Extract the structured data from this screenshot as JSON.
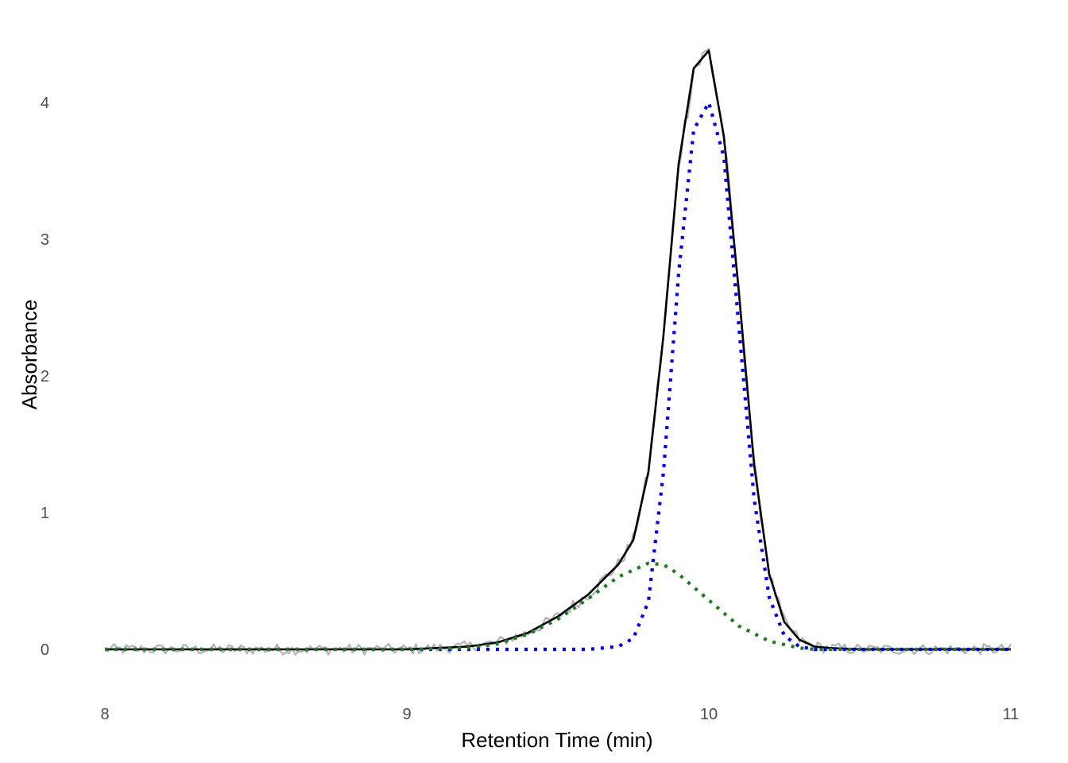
{
  "chart_data": {
    "type": "line",
    "title": "",
    "xlabel": "Retention Time (min)",
    "ylabel": "Absorbance",
    "xlim": [
      8,
      11
    ],
    "ylim": [
      -0.3,
      4.5
    ],
    "x_ticks": [
      8,
      9,
      10,
      11
    ],
    "y_ticks": [
      0,
      1,
      2,
      3,
      4
    ],
    "grid": false,
    "legend": "none",
    "series": [
      {
        "style": "noisy-observed",
        "color": "#b3b3b3",
        "noise_amplitude": 0.04,
        "x": [
          8.0,
          8.1,
          8.2,
          8.3,
          8.4,
          8.5,
          8.6,
          8.7,
          8.8,
          8.9,
          9.0,
          9.1,
          9.2,
          9.3,
          9.4,
          9.5,
          9.6,
          9.7,
          9.75,
          9.8,
          9.85,
          9.9,
          9.95,
          10.0,
          10.05,
          10.1,
          10.15,
          10.2,
          10.25,
          10.3,
          10.35,
          10.4,
          10.5,
          10.6,
          10.7,
          10.8,
          10.9,
          11.0
        ],
        "values": [
          0.0,
          0.0,
          0.0,
          0.0,
          0.0,
          0.0,
          0.0,
          0.0,
          0.0,
          0.0,
          0.0,
          0.01,
          0.02,
          0.05,
          0.12,
          0.24,
          0.4,
          0.62,
          0.8,
          1.3,
          2.3,
          3.55,
          4.25,
          4.38,
          3.75,
          2.6,
          1.35,
          0.55,
          0.2,
          0.07,
          0.02,
          0.01,
          0.0,
          0.0,
          0.0,
          0.0,
          0.0,
          0.0
        ]
      },
      {
        "style": "solid",
        "color": "#000000",
        "x": [
          8.0,
          8.2,
          8.4,
          8.6,
          8.8,
          9.0,
          9.1,
          9.2,
          9.3,
          9.4,
          9.5,
          9.6,
          9.7,
          9.75,
          9.8,
          9.85,
          9.9,
          9.95,
          10.0,
          10.05,
          10.1,
          10.15,
          10.2,
          10.25,
          10.3,
          10.35,
          10.4,
          10.5,
          10.6,
          10.8,
          11.0
        ],
        "values": [
          0.0,
          0.0,
          0.0,
          0.0,
          0.0,
          0.0,
          0.01,
          0.02,
          0.05,
          0.12,
          0.24,
          0.4,
          0.62,
          0.8,
          1.3,
          2.3,
          3.55,
          4.25,
          4.38,
          3.75,
          2.6,
          1.35,
          0.55,
          0.2,
          0.07,
          0.02,
          0.01,
          0.0,
          0.0,
          0.0,
          0.0
        ]
      },
      {
        "style": "dotted",
        "color": "#0000ff",
        "x": [
          8.0,
          9.0,
          9.4,
          9.6,
          9.7,
          9.75,
          9.8,
          9.85,
          9.9,
          9.95,
          10.0,
          10.05,
          10.1,
          10.15,
          10.2,
          10.25,
          10.3,
          10.35,
          10.4,
          10.6,
          11.0
        ],
        "values": [
          0.0,
          0.0,
          0.0,
          0.0,
          0.02,
          0.08,
          0.35,
          1.3,
          2.75,
          3.8,
          4.0,
          3.6,
          2.35,
          1.1,
          0.38,
          0.1,
          0.02,
          0.0,
          0.0,
          0.0,
          0.0
        ]
      },
      {
        "style": "dotted",
        "color": "#1e7b1e",
        "x": [
          8.0,
          8.6,
          9.0,
          9.2,
          9.3,
          9.4,
          9.5,
          9.6,
          9.7,
          9.8,
          9.85,
          9.9,
          10.0,
          10.1,
          10.2,
          10.3,
          10.35,
          10.4,
          10.6,
          11.0
        ],
        "values": [
          0.0,
          0.0,
          0.0,
          0.01,
          0.04,
          0.11,
          0.22,
          0.37,
          0.53,
          0.63,
          0.62,
          0.55,
          0.36,
          0.17,
          0.06,
          0.01,
          0.0,
          0.0,
          0.0,
          0.0
        ]
      }
    ]
  }
}
